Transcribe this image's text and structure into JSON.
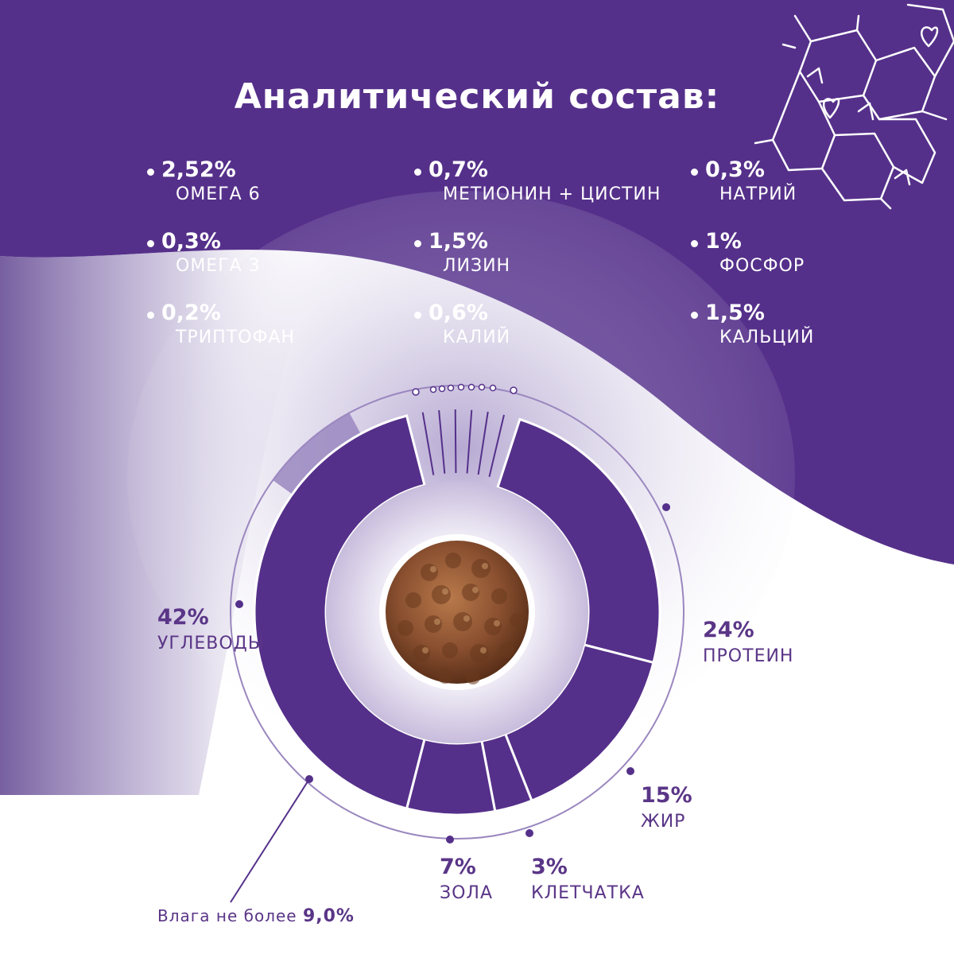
{
  "title": "Аналитический состав:",
  "colors": {
    "primary": "#55308a",
    "light": "#9a87bf",
    "white": "#ffffff"
  },
  "nutrients": [
    {
      "value": "2,52%",
      "name": "ОМЕГА 6"
    },
    {
      "value": "0,7%",
      "name": "МЕТИОНИН + ЦИСТИН"
    },
    {
      "value": "0,3%",
      "name": "НАТРИЙ"
    },
    {
      "value": "0,3%",
      "name": "ОМЕГА 3"
    },
    {
      "value": "1,5%",
      "name": "ЛИЗИН"
    },
    {
      "value": "1%",
      "name": "ФОСФОР"
    },
    {
      "value": "0,2%",
      "name": "ТРИПТОФАН"
    },
    {
      "value": "0,6%",
      "name": "КАЛИЙ"
    },
    {
      "value": "1,5%",
      "name": "КАЛЬЦИЙ"
    }
  ],
  "moisture": {
    "label": "Влага не более",
    "value": "9,0%"
  },
  "chart_data": {
    "type": "pie",
    "categories": [
      "ПРОТЕИН",
      "ЖИР",
      "КЛЕТЧАТКА",
      "ЗОЛА",
      "УГЛЕВОДЫ"
    ],
    "values": [
      24,
      15,
      3,
      7,
      42
    ],
    "labels": [
      "24%",
      "15%",
      "3%",
      "7%",
      "42%"
    ]
  }
}
